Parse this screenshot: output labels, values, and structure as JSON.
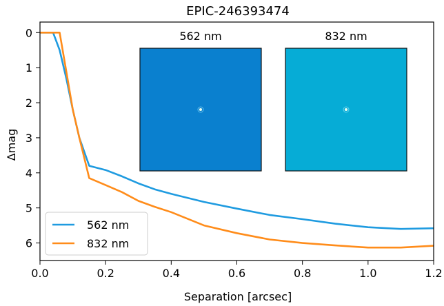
{
  "chart_data": {
    "type": "line",
    "title": "EPIC-246393474",
    "xlabel": "Separation [arcsec]",
    "ylabel": "Δmag",
    "xlim": [
      0.0,
      1.2
    ],
    "ylim": [
      6.5,
      -0.3
    ],
    "y_inverted": true,
    "grid": false,
    "legend_position": "lower-left",
    "xticks": [
      0.0,
      0.2,
      0.4,
      0.6,
      0.8,
      1.0,
      1.2
    ],
    "xtick_labels": [
      "0.0",
      "0.2",
      "0.4",
      "0.6",
      "0.8",
      "1.0",
      "1.2"
    ],
    "yticks": [
      0,
      1,
      2,
      3,
      4,
      5,
      6
    ],
    "ytick_labels": [
      "0",
      "1",
      "2",
      "3",
      "4",
      "5",
      "6"
    ],
    "series": [
      {
        "name": "562 nm",
        "color": "#1f9be0",
        "x": [
          0.0,
          0.04,
          0.06,
          0.08,
          0.1,
          0.12,
          0.15,
          0.2,
          0.25,
          0.3,
          0.35,
          0.4,
          0.5,
          0.6,
          0.7,
          0.8,
          0.9,
          1.0,
          1.1,
          1.2
        ],
        "y": [
          0.0,
          0.0,
          0.5,
          1.3,
          2.2,
          3.0,
          3.8,
          3.92,
          4.1,
          4.3,
          4.47,
          4.6,
          4.83,
          5.02,
          5.2,
          5.32,
          5.45,
          5.55,
          5.6,
          5.58
        ]
      },
      {
        "name": "832 nm",
        "color": "#ff8c1a",
        "x": [
          0.0,
          0.06,
          0.08,
          0.1,
          0.12,
          0.15,
          0.2,
          0.25,
          0.3,
          0.35,
          0.4,
          0.5,
          0.6,
          0.7,
          0.8,
          0.9,
          1.0,
          1.1,
          1.2
        ],
        "y": [
          0.0,
          0.0,
          1.1,
          2.2,
          3.0,
          4.15,
          4.35,
          4.55,
          4.8,
          4.97,
          5.12,
          5.5,
          5.72,
          5.9,
          6.0,
          6.07,
          6.13,
          6.13,
          6.08
        ]
      }
    ],
    "insets": [
      {
        "label": "562 nm",
        "color": "#0a80cf"
      },
      {
        "label": "832 nm",
        "color": "#06acd6"
      }
    ]
  }
}
